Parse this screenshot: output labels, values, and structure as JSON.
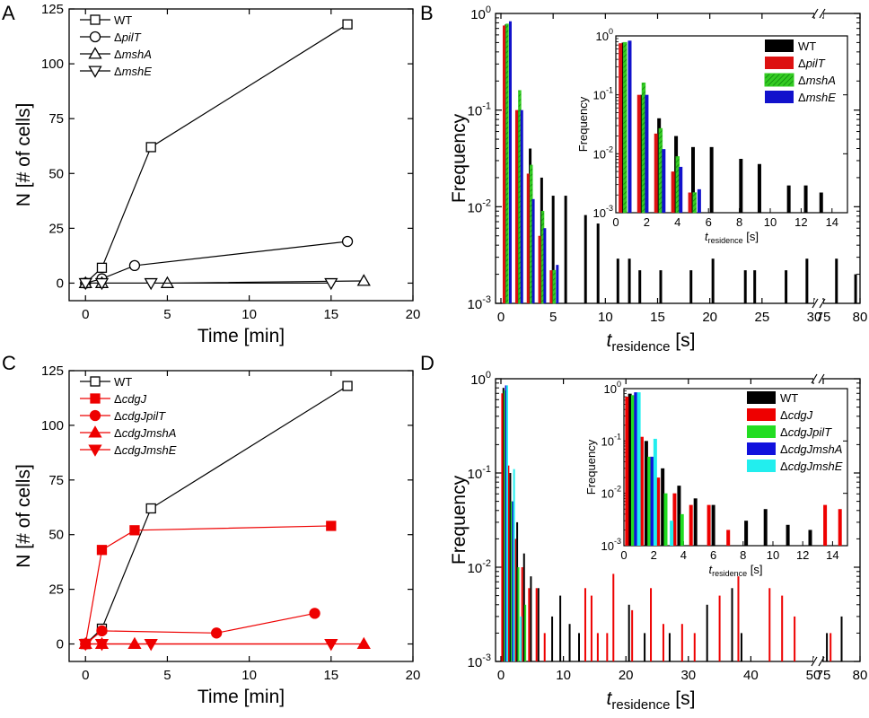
{
  "panels": [
    "A",
    "B",
    "C",
    "D"
  ],
  "chart_data": [
    {
      "panel": "A",
      "type": "line",
      "xlabel": "Time [min]",
      "ylabel": "N [# of cells]",
      "xlim": [
        -1,
        20
      ],
      "ylim": [
        -8,
        125
      ],
      "xticks": [
        0,
        5,
        10,
        15,
        20
      ],
      "yticks": [
        0,
        25,
        50,
        75,
        100,
        125
      ],
      "legend_position": "top-left",
      "series": [
        {
          "name": "WT",
          "marker": "square-open",
          "color": "#000000",
          "x": [
            0,
            1,
            4,
            16
          ],
          "y": [
            0,
            7,
            62,
            118
          ]
        },
        {
          "name": "ΔpilT",
          "marker": "circle-open",
          "color": "#000000",
          "x": [
            0,
            1,
            3,
            16
          ],
          "y": [
            0,
            2,
            8,
            19
          ]
        },
        {
          "name": "ΔmshA",
          "marker": "triangle-up-open",
          "color": "#000000",
          "x": [
            0,
            1,
            5,
            17
          ],
          "y": [
            0,
            0,
            0,
            1
          ]
        },
        {
          "name": "ΔmshE",
          "marker": "triangle-down-open",
          "color": "#000000",
          "x": [
            0,
            1,
            4,
            15
          ],
          "y": [
            0,
            0,
            0,
            0
          ]
        }
      ]
    },
    {
      "panel": "B",
      "type": "bar",
      "xlabel": "t",
      "xlabel_sub": "residence",
      "xlabel_unit": "[s]",
      "ylabel": "Frequency",
      "yscale": "log",
      "ylim": [
        0.001,
        1
      ],
      "ytick_labels": [
        "10-3",
        "10-2",
        "10-1",
        "100"
      ],
      "xticks": [
        "0",
        "5",
        "10",
        "15",
        "20",
        "25",
        "30",
        "75",
        "80"
      ],
      "axis_break": "//",
      "series": [
        {
          "name": "WT",
          "color": "#000000",
          "x": [
            0.5,
            1.7,
            2.8,
            3.9,
            5.0,
            6.2,
            8.1,
            9.3,
            11.2,
            12.3,
            13.3,
            15.3,
            18.2,
            20.3,
            23.4,
            24.3,
            27.3,
            29.3,
            33.6,
            76.8,
            79.4
          ],
          "y": [
            0.77,
            0.1,
            0.04,
            0.02,
            0.013,
            0.013,
            0.0082,
            0.0067,
            0.0029,
            0.0029,
            0.0022,
            0.0022,
            0.0022,
            0.0029,
            0.0022,
            0.0022,
            0.0022,
            0.0029,
            0.0029,
            0.0029,
            0.002
          ]
        },
        {
          "name": "ΔpilT",
          "color": "#dd1111",
          "x": [
            0.3,
            1.5,
            2.6,
            3.7,
            4.8
          ],
          "y": [
            0.75,
            0.1,
            0.022,
            0.005,
            0.0022
          ]
        },
        {
          "name": "ΔmshA",
          "color": "#33cc22",
          "pattern": "hatched",
          "x": [
            0.6,
            1.8,
            2.9,
            4.0,
            5.1
          ],
          "y": [
            0.78,
            0.16,
            0.027,
            0.009,
            0.0022
          ]
        },
        {
          "name": "ΔmshE",
          "color": "#1111cc",
          "x": [
            0.9,
            2.0,
            3.1,
            4.2,
            5.4
          ],
          "y": [
            0.83,
            0.1,
            0.012,
            0.006,
            0.0025
          ]
        }
      ],
      "inset": {
        "ylabel": "Frequency",
        "xlabel": "t",
        "xlabel_sub": "residence",
        "xlabel_unit": "[s]",
        "xticks": [
          0,
          2,
          4,
          6,
          8,
          10,
          12,
          14
        ],
        "xlim": [
          0,
          15
        ],
        "ytick_labels": [
          "10-3",
          "10-2",
          "10-1",
          "100"
        ],
        "legend_position": "top-right"
      }
    },
    {
      "panel": "C",
      "type": "line",
      "xlabel": "Time [min]",
      "ylabel": "N [# of cells]",
      "xlim": [
        -1,
        20
      ],
      "ylim": [
        -8,
        125
      ],
      "xticks": [
        0,
        5,
        10,
        15,
        20
      ],
      "yticks": [
        0,
        25,
        50,
        75,
        100,
        125
      ],
      "legend_position": "top-left",
      "series": [
        {
          "name": "WT",
          "marker": "square-open",
          "color": "#000000",
          "x": [
            0,
            1,
            4,
            16
          ],
          "y": [
            0,
            7,
            62,
            118
          ]
        },
        {
          "name": "ΔcdgJ",
          "marker": "square-filled",
          "color": "#ee0000",
          "x": [
            0,
            1,
            3,
            15
          ],
          "y": [
            0,
            43,
            52,
            54
          ]
        },
        {
          "name": "ΔcdgJpilT",
          "marker": "circle-filled",
          "color": "#ee0000",
          "x": [
            0,
            1,
            8,
            14
          ],
          "y": [
            0,
            6,
            5,
            14
          ]
        },
        {
          "name": "ΔcdgJmshA",
          "marker": "triangle-up-filled",
          "color": "#ee0000",
          "x": [
            0,
            1,
            3,
            17
          ],
          "y": [
            0,
            0,
            0,
            0
          ]
        },
        {
          "name": "ΔcdgJmshE",
          "marker": "triangle-down-filled",
          "color": "#ee0000",
          "x": [
            0,
            1,
            4,
            15
          ],
          "y": [
            0,
            0,
            0,
            0
          ]
        }
      ]
    },
    {
      "panel": "D",
      "type": "bar",
      "xlabel": "t",
      "xlabel_sub": "residence",
      "xlabel_unit": "[s]",
      "ylabel": "Frequency",
      "yscale": "log",
      "ylim": [
        0.001,
        1
      ],
      "ytick_labels": [
        "10-3",
        "10-2",
        "10-1",
        "100"
      ],
      "xticks": [
        "0",
        "10",
        "20",
        "30",
        "40",
        "50",
        "75",
        "80"
      ],
      "axis_break": "//",
      "series": [
        {
          "name": "WT",
          "color": "#000000",
          "x": [
            0.4,
            1.5,
            2.6,
            3.7,
            4.8,
            6.0,
            8.2,
            9.5,
            11.0,
            12.5,
            20.5,
            23.0,
            27.0,
            33.0,
            37.0,
            38.5,
            75.5,
            77.5
          ],
          "y": [
            0.8,
            0.1,
            0.03,
            0.014,
            0.008,
            0.006,
            0.003,
            0.005,
            0.0025,
            0.002,
            0.004,
            0.002,
            0.002,
            0.004,
            0.006,
            0.002,
            0.002,
            0.003
          ]
        },
        {
          "name": "ΔcdgJ",
          "color": "#ee0000",
          "x": [
            0.2,
            1.2,
            2.3,
            3.4,
            4.5,
            5.7,
            7.0,
            13.5,
            14.5,
            15.5,
            17.0,
            18.0,
            21.0,
            24.0,
            26.0,
            29.0,
            31.0,
            35.0,
            38.0,
            43.0,
            45.0,
            47.0,
            76.0
          ],
          "y": [
            0.7,
            0.12,
            0.02,
            0.01,
            0.006,
            0.006,
            0.002,
            0.006,
            0.005,
            0.002,
            0.002,
            0.0085,
            0.0035,
            0.006,
            0.0025,
            0.0025,
            0.002,
            0.005,
            0.008,
            0.006,
            0.005,
            0.003,
            0.002
          ]
        },
        {
          "name": "ΔcdgJpilT",
          "color": "#22dd22",
          "x": [
            0.6,
            1.7,
            2.8,
            3.9
          ],
          "y": [
            0.75,
            0.05,
            0.01,
            0.004
          ]
        },
        {
          "name": "ΔcdgJmshA",
          "color": "#1111dd",
          "x": [
            0.8,
            1.9
          ],
          "y": [
            0.85,
            0.05
          ]
        },
        {
          "name": "ΔcdgJmshE",
          "color": "#22eeee",
          "x": [
            1.0,
            2.1,
            3.2
          ],
          "y": [
            0.85,
            0.11,
            0.003
          ]
        }
      ],
      "inset": {
        "ylabel": "Frequency",
        "xlabel": "t",
        "xlabel_sub": "residence",
        "xlabel_unit": "[s]",
        "xticks": [
          0,
          2,
          4,
          6,
          8,
          10,
          12,
          14
        ],
        "xlim": [
          0,
          15
        ],
        "ytick_labels": [
          "10-3",
          "10-2",
          "10-1",
          "100"
        ],
        "legend_position": "top-right"
      }
    }
  ]
}
